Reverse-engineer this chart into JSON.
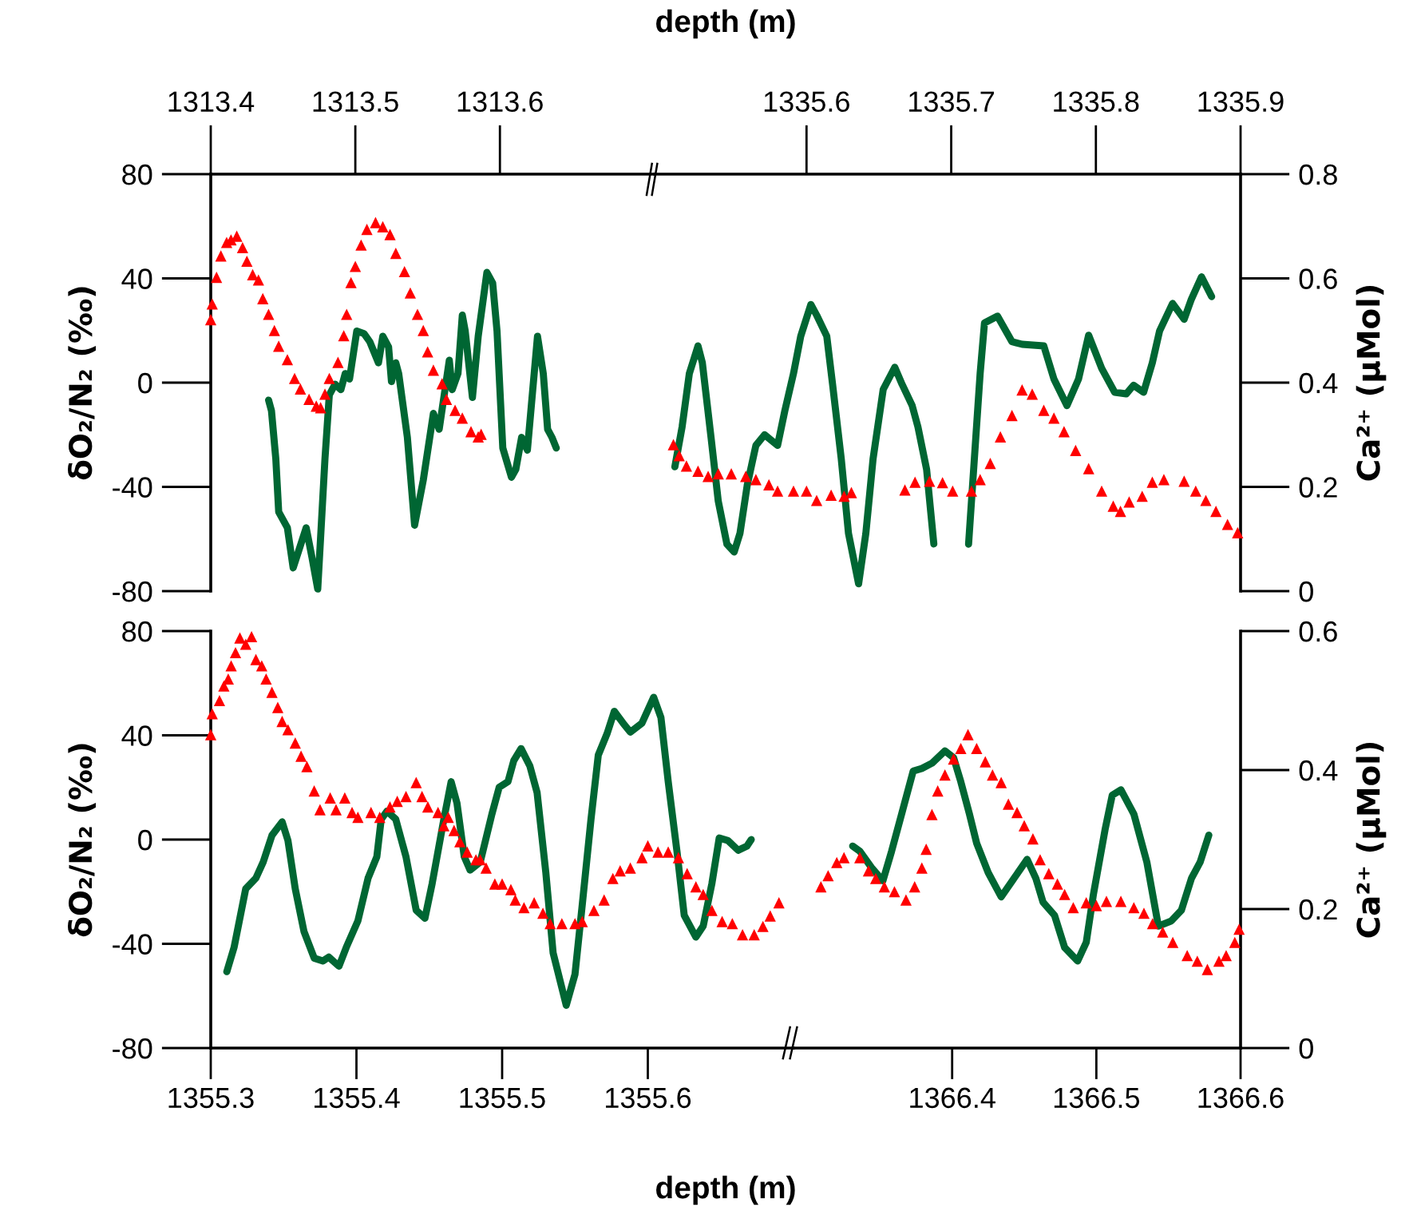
{
  "chart_data": [
    {
      "type": "line",
      "xlabel": "depth (m)",
      "ylabel": "δO₂/N₂ (‰)",
      "xlim": [
        1313.4,
        1313.707
      ],
      "xticks": [
        1313.4,
        1313.5,
        1313.6
      ],
      "ylim": [
        -80,
        80
      ],
      "yticks": [
        -80,
        -40,
        0,
        40,
        80
      ],
      "y2lim": [
        0,
        0.8
      ],
      "tick_labels": [
        "x",
        "y"
      ],
      "line_style": "solid",
      "series": [
        {
          "color": "#006633",
          "x": [
            1313.44,
            1313.442,
            1313.445,
            1313.447,
            1313.453,
            1313.457,
            1313.466,
            1313.47,
            1313.474,
            1313.479,
            1313.482,
            1313.486,
            1313.49,
            1313.493,
            1313.496,
            1313.501,
            1313.506,
            1313.51,
            1313.516,
            1313.519,
            1313.523,
            1313.525,
            1313.528,
            1313.53,
            1313.536,
            1313.541,
            1313.547,
            1313.554,
            1313.558,
            1313.565,
            1313.567,
            1313.571,
            1313.574,
            1313.576,
            1313.581,
            1313.585,
            1313.591,
            1313.595,
            1313.598,
            1313.602,
            1313.608,
            1313.611,
            1313.615,
            1313.619,
            1313.626,
            1313.63,
            1313.633,
            1313.636,
            1313.639
          ],
          "values": [
            -6.7,
            -10.8,
            -29.2,
            -49.6,
            -55.7,
            -71.1,
            -55.7,
            -67,
            -79.2,
            -29.2,
            -4.7,
            -0.6,
            -2.7,
            3.5,
            1.4,
            19.8,
            18.8,
            15.7,
            7.6,
            17.8,
            13.7,
            0.4,
            7.6,
            3.5,
            -21,
            -54.7,
            -37.4,
            -11.8,
            -17.9,
            8.6,
            -2.7,
            3.5,
            25.9,
            19.8,
            -5.7,
            17.8,
            42.3,
            38.2,
            19.8,
            -25.1,
            -36.3,
            -33.3,
            -21,
            -25.9,
            17.8,
            3.5,
            -17.9,
            -21,
            -25.1
          ]
        },
        {
          "type": "scatter",
          "axis": "y2",
          "marker": "triangle",
          "color": "#ff0000",
          "x": [
            1313.4,
            1313.401,
            1313.404,
            1313.407,
            1313.411,
            1313.414,
            1313.418,
            1313.422,
            1313.425,
            1313.429,
            1313.433,
            1313.436,
            1313.44,
            1313.444,
            1313.447,
            1313.453,
            1313.458,
            1313.462,
            1313.468,
            1313.473,
            1313.476,
            1313.479,
            1313.482,
            1313.488,
            1313.492,
            1313.494,
            1313.497,
            1313.5,
            1313.504,
            1313.508,
            1313.514,
            1313.519,
            1313.524,
            1313.528,
            1313.534,
            1313.538,
            1313.543,
            1313.547,
            1313.55,
            1313.554,
            1313.56,
            1313.563,
            1313.569,
            1313.574,
            1313.58,
            1313.585,
            1313.587
          ],
          "values": [
            0.521,
            0.551,
            0.602,
            0.643,
            0.669,
            0.674,
            0.681,
            0.659,
            0.633,
            0.607,
            0.597,
            0.561,
            0.531,
            0.5,
            0.47,
            0.444,
            0.408,
            0.388,
            0.368,
            0.355,
            0.352,
            0.378,
            0.408,
            0.439,
            0.49,
            0.531,
            0.592,
            0.623,
            0.664,
            0.694,
            0.707,
            0.699,
            0.684,
            0.648,
            0.613,
            0.572,
            0.531,
            0.5,
            0.459,
            0.424,
            0.398,
            0.368,
            0.347,
            0.332,
            0.306,
            0.296,
            0.301
          ]
        }
      ]
    },
    {
      "type": "line",
      "y2label": "Ca²⁺ (μMol)",
      "xlim": [
        1335.495,
        1335.9
      ],
      "xticks": [
        1335.6,
        1335.7,
        1335.8,
        1335.9
      ],
      "ylim": [
        -80,
        80
      ],
      "y2lim": [
        0,
        0.8
      ],
      "y2ticks": [
        0,
        0.2,
        0.4,
        0.6,
        0.8
      ],
      "tick_labels": [
        "x",
        "y2"
      ],
      "line_style": "solid",
      "series": [
        {
          "color": "#006633",
          "x": [
            1335.509,
            1335.514,
            1335.519,
            1335.525,
            1335.528,
            1335.534,
            1335.539,
            1335.545,
            1335.55,
            1335.554,
            1335.559,
            1335.565,
            1335.571,
            1335.58,
            1335.585,
            1335.591,
            1335.596,
            1335.603,
            1335.607,
            1335.614,
            1335.618,
            1335.624,
            1335.629,
            1335.636,
            1335.641,
            1335.646,
            1335.653,
            1335.661,
            1335.666,
            1335.673,
            1335.677,
            1335.683,
            1335.688,
            1335.692,
            1335.697,
            1335.702,
            1335.707,
            1335.712,
            1335.72,
            1335.723,
            1335.732,
            1335.742,
            1335.749,
            1335.764,
            1335.771,
            1335.78,
            1335.788,
            1335.795,
            1335.804,
            1335.813,
            1335.821,
            1335.826,
            1335.833,
            1335.839,
            1335.844,
            1335.853,
            1335.861,
            1335.866,
            1335.873,
            1335.88
          ],
          "values": [
            -32.3,
            -17,
            3.5,
            14.1,
            7.6,
            -21,
            -45.5,
            -62,
            -65,
            -57.8,
            -39.4,
            -24.1,
            -20,
            -24.1,
            -10.8,
            3.5,
            17.8,
            30,
            25.9,
            17.8,
            -0.6,
            -29.2,
            -57.8,
            -77.2,
            -57.8,
            -29.2,
            -2.6,
            5.9,
            -0.6,
            -8.8,
            -17,
            -33.3,
            -61.9,
            null,
            null,
            null,
            null,
            -62,
            3.5,
            22.9,
            25.5,
            15.7,
            14.7,
            14.1,
            1.4,
            -8.8,
            1.4,
            18.2,
            5.5,
            -3.7,
            -4.3,
            -1,
            -3.7,
            7.6,
            19.8,
            30.4,
            24.3,
            32,
            40.6,
            33
          ]
        },
        {
          "type": "scatter",
          "axis": "y2",
          "marker": "triangle",
          "color": "#ff0000",
          "x": [
            1335.508,
            1335.512,
            1335.517,
            1335.525,
            1335.532,
            1335.539,
            1335.548,
            1335.558,
            1335.565,
            1335.574,
            1335.58,
            1335.591,
            1335.6,
            1335.607,
            1335.617,
            1335.626,
            1335.631,
            1335.668,
            1335.675,
            1335.685,
            1335.694,
            1335.701,
            1335.714,
            1335.72,
            1335.727,
            1335.734,
            1335.742,
            1335.749,
            1335.756,
            1335.764,
            1335.771,
            1335.778,
            1335.786,
            1335.795,
            1335.804,
            1335.812,
            1335.817,
            1335.823,
            1335.832,
            1335.839,
            1335.847,
            1335.861,
            1335.869,
            1335.876,
            1335.883,
            1335.891,
            1335.898
          ],
          "values": [
            0.281,
            0.26,
            0.24,
            0.23,
            0.22,
            0.225,
            0.225,
            0.22,
            0.214,
            0.204,
            0.192,
            0.192,
            0.192,
            0.174,
            0.184,
            0.182,
            0.189,
            0.194,
            0.209,
            0.211,
            0.208,
            0.192,
            0.192,
            0.214,
            0.245,
            0.296,
            0.337,
            0.386,
            0.378,
            0.347,
            0.332,
            0.306,
            0.27,
            0.235,
            0.192,
            0.163,
            0.153,
            0.171,
            0.182,
            0.209,
            0.214,
            0.211,
            0.192,
            0.174,
            0.153,
            0.128,
            0.112
          ]
        }
      ]
    },
    {
      "type": "line",
      "xlabel": "depth (m)",
      "ylabel": "δO₂/N₂ (‰)",
      "xlim": [
        1355.3,
        1355.7
      ],
      "xticks": [
        1355.3,
        1355.4,
        1355.5,
        1355.6
      ],
      "ylim": [
        -80,
        80
      ],
      "yticks": [
        -80,
        -40,
        0,
        40,
        80
      ],
      "y2lim": [
        0,
        0.6
      ],
      "tick_labels": [
        "x",
        "y"
      ],
      "line_style": "solid",
      "series": [
        {
          "color": "#006633",
          "x": [
            1355.311,
            1355.316,
            1355.324,
            1355.331,
            1355.336,
            1355.342,
            1355.349,
            1355.353,
            1355.358,
            1355.364,
            1355.371,
            1355.377,
            1355.381,
            1355.388,
            1355.393,
            1355.401,
            1355.408,
            1355.414,
            1355.417,
            1355.421,
            1355.427,
            1355.434,
            1355.441,
            1355.447,
            1355.452,
            1355.46,
            1355.465,
            1355.469,
            1355.474,
            1355.478,
            1355.485,
            1355.493,
            1355.498,
            1355.504,
            1355.508,
            1355.513,
            1355.519,
            1355.524,
            1355.53,
            1355.535,
            1355.544,
            1355.55,
            1355.555,
            1355.561,
            1355.566,
            1355.572,
            1355.577,
            1355.583,
            1355.588,
            1355.596,
            1355.604,
            1355.609,
            1355.614,
            1355.62,
            1355.625,
            1355.633,
            1355.638,
            1355.644,
            1355.649,
            1355.655,
            1355.662,
            1355.668,
            1355.671
          ],
          "values": [
            -50.7,
            -41.4,
            -18.9,
            -14.8,
            -8.6,
            1.6,
            6.8,
            -0.4,
            -18.9,
            -35.3,
            -45.5,
            -46.6,
            -45.1,
            -48.6,
            -41.4,
            -31.2,
            -14.8,
            -6.6,
            7.8,
            10.9,
            7.8,
            -6.6,
            -27.1,
            -30.2,
            -16.8,
            7.8,
            22.2,
            14,
            -6.6,
            -11.7,
            -8.6,
            9.8,
            20.1,
            22.2,
            30.3,
            34.9,
            28.3,
            18,
            -12.7,
            -43.5,
            -63.6,
            -51.7,
            -25,
            7.8,
            32.4,
            40.6,
            49.2,
            44.7,
            41.2,
            44.7,
            54.6,
            46.8,
            22.2,
            -4.5,
            -29.1,
            -37.4,
            -33.2,
            -16.8,
            0.6,
            -0.4,
            -4.1,
            -2.5,
            0
          ]
        },
        {
          "type": "scatter",
          "axis": "y2",
          "marker": "triangle",
          "color": "#ff0000",
          "x": [
            1355.3,
            1355.301,
            1355.306,
            1355.309,
            1355.312,
            1355.314,
            1355.317,
            1355.32,
            1355.324,
            1355.328,
            1355.331,
            1355.335,
            1355.338,
            1355.342,
            1355.346,
            1355.349,
            1355.353,
            1355.358,
            1355.362,
            1355.366,
            1355.371,
            1355.375,
            1355.382,
            1355.386,
            1355.392,
            1355.397,
            1355.401,
            1355.41,
            1355.416,
            1355.423,
            1355.428,
            1355.434,
            1355.441,
            1355.445,
            1355.449,
            1355.456,
            1355.46,
            1355.463,
            1355.467,
            1355.471,
            1355.476,
            1355.482,
            1355.485,
            1355.489,
            1355.495,
            1355.5,
            1355.506,
            1355.509,
            1355.515,
            1355.522,
            1355.528,
            1355.533,
            1355.541,
            1355.55,
            1355.555,
            1355.563,
            1355.57,
            1355.576,
            1355.581,
            1355.588,
            1355.596,
            1355.6,
            1355.607,
            1355.614,
            1355.621,
            1355.627,
            1355.633,
            1355.638,
            1355.644,
            1355.651,
            1355.658,
            1355.665,
            1355.673,
            1355.679,
            1355.684,
            1355.69
          ],
          "values": [
            0.451,
            0.481,
            0.5,
            0.521,
            0.531,
            0.55,
            0.569,
            0.59,
            0.581,
            0.592,
            0.559,
            0.55,
            0.531,
            0.512,
            0.49,
            0.47,
            0.458,
            0.439,
            0.42,
            0.405,
            0.37,
            0.343,
            0.36,
            0.343,
            0.36,
            0.339,
            0.332,
            0.339,
            0.332,
            0.347,
            0.355,
            0.362,
            0.382,
            0.362,
            0.347,
            0.339,
            0.32,
            0.332,
            0.313,
            0.297,
            0.282,
            0.271,
            0.271,
            0.259,
            0.236,
            0.236,
            0.228,
            0.213,
            0.202,
            0.209,
            0.194,
            0.179,
            0.179,
            0.179,
            0.182,
            0.198,
            0.213,
            0.244,
            0.255,
            0.259,
            0.274,
            0.291,
            0.282,
            0.282,
            0.274,
            0.251,
            0.232,
            0.221,
            0.198,
            0.182,
            0.179,
            0.163,
            0.163,
            0.175,
            0.19,
            0.209
          ]
        }
      ]
    },
    {
      "type": "line",
      "y2label": "Ca²⁺ (μMol)",
      "xlim": [
        1366.29,
        1366.6
      ],
      "xticks": [
        1366.4,
        1366.5,
        1366.6
      ],
      "ylim": [
        -80,
        80
      ],
      "y2lim": [
        0,
        0.6
      ],
      "y2ticks": [
        0,
        0.2,
        0.4,
        0.6
      ],
      "tick_labels": [
        "x",
        "y2"
      ],
      "line_style": "solid",
      "series": [
        {
          "color": "#006633",
          "x": [
            1366.331,
            1366.336,
            1366.344,
            1366.352,
            1366.358,
            1366.366,
            1366.373,
            1366.379,
            1366.386,
            1366.395,
            1366.401,
            1366.406,
            1366.412,
            1366.417,
            1366.425,
            1366.434,
            1366.443,
            1366.452,
            1366.458,
            1366.463,
            1366.471,
            1366.478,
            1366.487,
            1366.493,
            1366.498,
            1366.506,
            1366.511,
            1366.517,
            1366.526,
            1366.535,
            1366.543,
            1366.552,
            1366.559,
            1366.566,
            1366.572,
            1366.578
          ],
          "values": [
            -2.5,
            -4.5,
            -10.7,
            -15.8,
            -4.5,
            11.9,
            26.3,
            27.3,
            29.3,
            34,
            31.4,
            22.2,
            9.8,
            -1.4,
            -12.7,
            -22,
            -14.8,
            -7.6,
            -14.8,
            -24,
            -29.1,
            -41.4,
            -46.6,
            -39.4,
            -20.9,
            3.7,
            17,
            19.1,
            9.8,
            -8.6,
            -33.2,
            -31.2,
            -27.1,
            -14.8,
            -8.6,
            1.7
          ]
        },
        {
          "type": "scatter",
          "axis": "y2",
          "marker": "triangle",
          "color": "#ff0000",
          "x": [
            1366.309,
            1366.314,
            1366.32,
            1366.325,
            1366.336,
            1366.342,
            1366.347,
            1366.353,
            1366.36,
            1366.368,
            1366.374,
            1366.379,
            1366.382,
            1366.386,
            1366.39,
            1366.395,
            1366.401,
            1366.406,
            1366.411,
            1366.417,
            1366.423,
            1366.428,
            1366.434,
            1366.439,
            1366.445,
            1366.45,
            1366.456,
            1366.461,
            1366.467,
            1366.473,
            1366.478,
            1366.484,
            1366.493,
            1366.5,
            1366.507,
            1366.517,
            1366.526,
            1366.533,
            1366.539,
            1366.546,
            1366.553,
            1366.563,
            1366.57,
            1366.577,
            1366.585,
            1366.59,
            1366.596,
            1366.599
          ],
          "values": [
            0.232,
            0.248,
            0.267,
            0.274,
            0.274,
            0.255,
            0.244,
            0.232,
            0.225,
            0.213,
            0.232,
            0.259,
            0.286,
            0.336,
            0.37,
            0.393,
            0.416,
            0.431,
            0.451,
            0.431,
            0.412,
            0.393,
            0.382,
            0.351,
            0.339,
            0.32,
            0.301,
            0.271,
            0.251,
            0.236,
            0.221,
            0.202,
            0.209,
            0.205,
            0.211,
            0.211,
            0.202,
            0.194,
            0.179,
            0.167,
            0.152,
            0.133,
            0.125,
            0.113,
            0.125,
            0.133,
            0.152,
            0.171
          ]
        }
      ]
    }
  ]
}
